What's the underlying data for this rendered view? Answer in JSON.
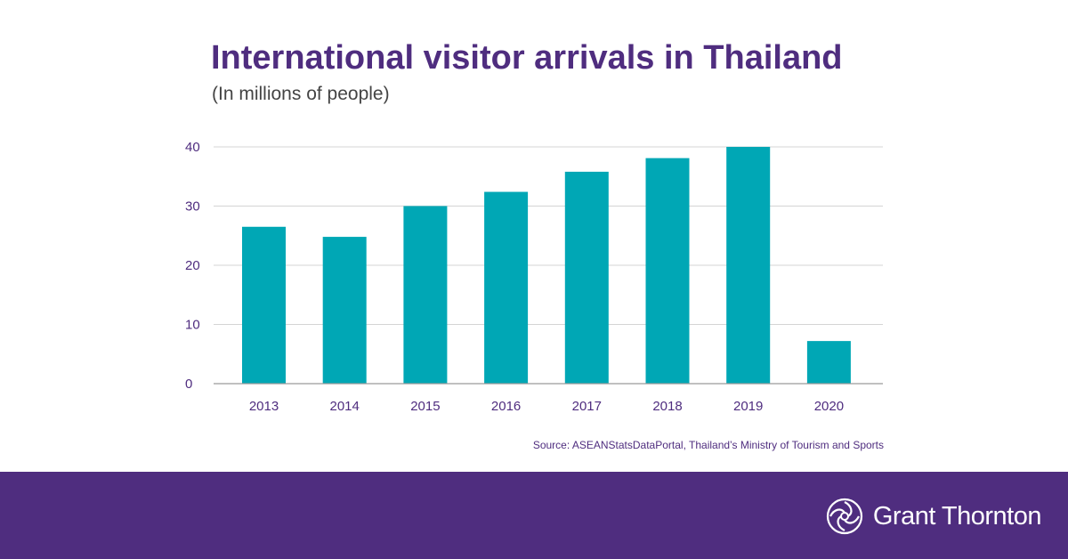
{
  "header": {
    "title": "International visitor arrivals in Thailand",
    "subtitle": "(In millions of people)"
  },
  "source": "Source: ASEANStatsDataPortal, Thailand’s Ministry of Tourism and Sports",
  "brand": {
    "name": "Grant Thornton",
    "logo_icon": "spiral-swirl-icon"
  },
  "colors": {
    "bar": "#00a7b5",
    "accent": "#4f2d7f",
    "footer": "#4f2d7f"
  },
  "chart_data": {
    "type": "bar",
    "title": "International visitor arrivals in Thailand",
    "subtitle": "(In millions of people)",
    "categories": [
      "2013",
      "2014",
      "2015",
      "2016",
      "2017",
      "2018",
      "2019",
      "2020"
    ],
    "values": [
      26.5,
      24.8,
      30.0,
      32.4,
      35.8,
      38.1,
      40.0,
      7.2
    ],
    "ylim": [
      0,
      40
    ],
    "yticks": [
      0,
      10,
      20,
      30,
      40
    ],
    "grid": true,
    "legend": "none"
  }
}
